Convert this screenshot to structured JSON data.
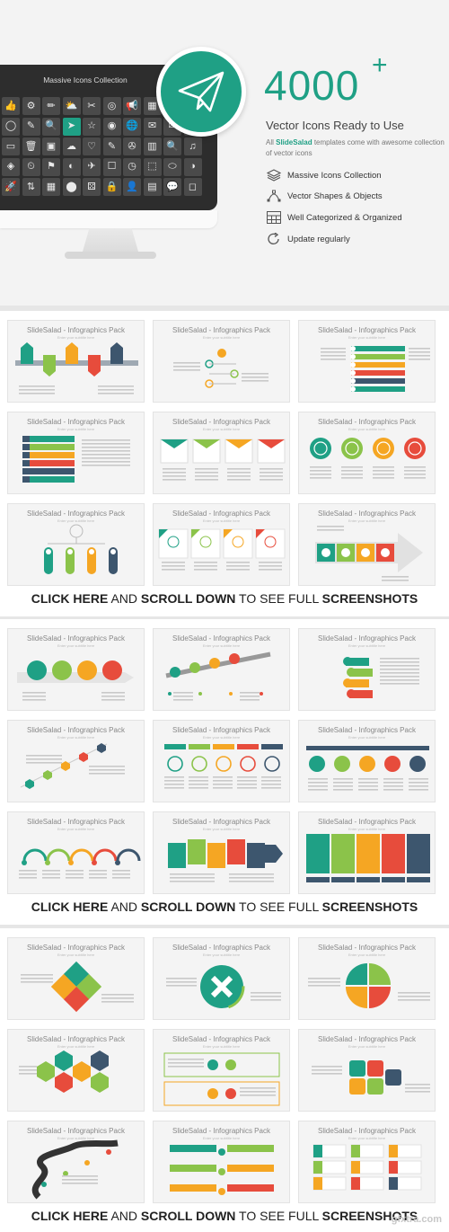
{
  "hero": {
    "monitor_title": "Massive Icons Collection",
    "big_number": "4000",
    "big_plus": "+",
    "subtitle": "Vector Icons Ready to Use",
    "desc_prefix": "All ",
    "desc_brand": "SlideSalad",
    "desc_suffix": " templates come with awesome collection of vector icons",
    "features": [
      {
        "label": "Massive Icons Collection",
        "icon": "layers-icon"
      },
      {
        "label": "Vector Shapes & Objects",
        "icon": "vector-icon"
      },
      {
        "label": "Well Categorized & Organized",
        "icon": "grid-icon"
      },
      {
        "label": "Update regularly",
        "icon": "refresh-icon"
      }
    ],
    "grid_icons": [
      "👍",
      "⚙",
      "✏",
      "⛅",
      "✂",
      "◎",
      "📢",
      "▦",
      "☀",
      "◷",
      "◯",
      "✎",
      "🔍",
      "➤",
      "☆",
      "◉",
      "🌐",
      "✉",
      "✉",
      "🛒",
      "▭",
      "🗑",
      "▣",
      "☁",
      "♡",
      "✎",
      "✇",
      "▥",
      "🔍",
      "♫",
      "◈",
      "⏲",
      "⚑",
      "◐",
      "✈",
      "☐",
      "◷",
      "⬚",
      "⬭",
      "◑",
      "🚀",
      "⇅",
      "▦",
      "⬤",
      "⚄",
      "🔒",
      "👤",
      "▤",
      "💬",
      "◻"
    ],
    "accent_color": "#1fa085"
  },
  "sections": [
    {
      "cta": {
        "a": "CLICK HERE",
        "b": " AND ",
        "c": "SCROLL DOWN",
        "d": " TO SEE FULL ",
        "e": "SCREENSHOTS"
      },
      "slides": [
        {
          "title": "SlideSalad - Infographics Pack",
          "sub": "Enter your subtitle here",
          "kind": "arrows"
        },
        {
          "title": "SlideSalad - Infographics Pack",
          "sub": "Enter your subtitle here",
          "kind": "bulb"
        },
        {
          "title": "SlideSalad - Infographics Pack",
          "sub": "Enter your subtitle here",
          "kind": "bars"
        },
        {
          "title": "SlideSalad - Infographics Pack",
          "sub": "Enter your subtitle here",
          "kind": "stripes"
        },
        {
          "title": "SlideSalad - Infographics Pack",
          "sub": "Enter your subtitle here",
          "kind": "folds"
        },
        {
          "title": "SlideSalad - Infographics Pack",
          "sub": "Enter your subtitle here",
          "kind": "circles"
        },
        {
          "title": "SlideSalad - Infographics Pack",
          "sub": "Enter your subtitle here",
          "kind": "pills"
        },
        {
          "title": "SlideSalad - Infographics Pack",
          "sub": "Enter your subtitle here",
          "kind": "boxes"
        },
        {
          "title": "SlideSalad - Infographics Pack",
          "sub": "Enter your subtitle here",
          "kind": "bigarrow"
        }
      ]
    },
    {
      "cta": {
        "a": "CLICK HERE",
        "b": " AND ",
        "c": "SCROLL DOWN",
        "d": " TO SEE FULL ",
        "e": "SCREENSHOTS"
      },
      "slides": [
        {
          "title": "SlideSalad - Infographics Pack",
          "sub": "Enter your subtitle here",
          "kind": "ringarrow"
        },
        {
          "title": "SlideSalad - Infographics Pack",
          "sub": "Enter your subtitle here",
          "kind": "steps"
        },
        {
          "title": "SlideSalad - Infographics Pack",
          "sub": "Enter your subtitle here",
          "kind": "tags"
        },
        {
          "title": "SlideSalad - Infographics Pack",
          "sub": "Enter your subtitle here",
          "kind": "hexline"
        },
        {
          "title": "SlideSalad - Infographics Pack",
          "sub": "Enter your subtitle here",
          "kind": "timeline"
        },
        {
          "title": "SlideSalad - Infographics Pack",
          "sub": "Enter your subtitle here",
          "kind": "timeline2"
        },
        {
          "title": "SlideSalad - Infographics Pack",
          "sub": "Enter your subtitle here",
          "kind": "arcs"
        },
        {
          "title": "SlideSalad - Infographics Pack",
          "sub": "Enter your subtitle here",
          "kind": "ribbons"
        },
        {
          "title": "SlideSalad - Infographics Pack",
          "sub": "Enter your subtitle here",
          "kind": "columns"
        }
      ]
    },
    {
      "cta": {
        "a": "CLICK HERE",
        "b": " AND ",
        "c": "SCROLL DOWN",
        "d": " TO SEE FULL ",
        "e": "SCREENSHOTS"
      },
      "slides": [
        {
          "title": "SlideSalad - Infographics Pack",
          "sub": "Enter your subtitle here",
          "kind": "flower"
        },
        {
          "title": "SlideSalad - Infographics Pack",
          "sub": "Enter your subtitle here",
          "kind": "ring"
        },
        {
          "title": "SlideSalad - Infographics Pack",
          "sub": "Enter your subtitle here",
          "kind": "quad"
        },
        {
          "title": "SlideSalad - Infographics Pack",
          "sub": "Enter your subtitle here",
          "kind": "hexes"
        },
        {
          "title": "SlideSalad - Infographics Pack",
          "sub": "Enter your subtitle here",
          "kind": "frames"
        },
        {
          "title": "SlideSalad - Infographics Pack",
          "sub": "Enter your subtitle here",
          "kind": "puzzle"
        },
        {
          "title": "SlideSalad - Infographics Pack",
          "sub": "Enter your subtitle here",
          "kind": "road"
        },
        {
          "title": "SlideSalad - Infographics Pack",
          "sub": "Enter your subtitle here",
          "kind": "banners"
        },
        {
          "title": "SlideSalad - Infographics Pack",
          "sub": "Enter your subtitle here",
          "kind": "cards"
        }
      ]
    }
  ],
  "palette": [
    "#1fa085",
    "#8bc34a",
    "#f5a623",
    "#e74c3c",
    "#3d566e"
  ],
  "watermark": "gfxtra.com"
}
